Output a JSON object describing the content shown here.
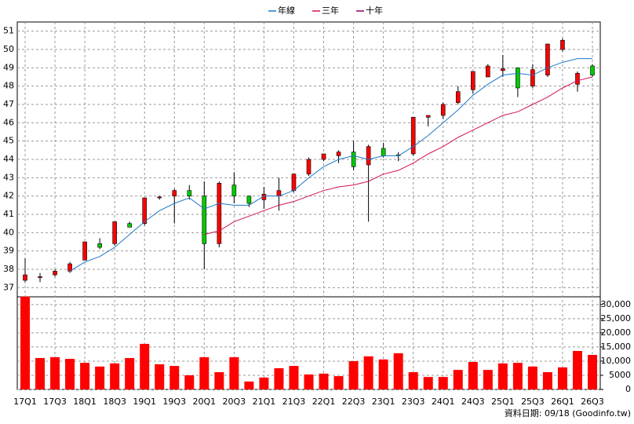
{
  "chart_data": [
    {
      "type": "candlestick",
      "categories": [
        "17Q1",
        null,
        "17Q3",
        null,
        "18Q1",
        null,
        "18Q3",
        null,
        "19Q1",
        null,
        "19Q3",
        null,
        "20Q1",
        null,
        "20Q3",
        null,
        "21Q1",
        null,
        "21Q3",
        null,
        "22Q1",
        null,
        "22Q3",
        null,
        "23Q1",
        null,
        "23Q3",
        null,
        "24Q1",
        null,
        "24Q3",
        null,
        "25Q1",
        null,
        "25Q3",
        null,
        "26Q1",
        null,
        "26Q3"
      ],
      "open": [
        37.4,
        37.55,
        37.7,
        37.9,
        38.5,
        39.4,
        39.4,
        40.5,
        40.5,
        41.9,
        42.0,
        42.3,
        42.0,
        39.4,
        42.6,
        42.0,
        41.8,
        42.0,
        42.3,
        43.2,
        44.0,
        44.2,
        44.4,
        43.7,
        44.6,
        44.25,
        44.3,
        46.3,
        46.4,
        47.1,
        47.8,
        48.5,
        48.85,
        49.0,
        48.0,
        48.6,
        50.0,
        48.1,
        49.1
      ],
      "high": [
        38.6,
        37.8,
        38.0,
        38.4,
        39.5,
        39.7,
        40.6,
        40.6,
        41.9,
        42.0,
        42.4,
        42.6,
        42.8,
        42.8,
        43.3,
        42.0,
        42.5,
        43.0,
        43.2,
        44.1,
        44.3,
        44.5,
        45.0,
        44.8,
        44.9,
        44.4,
        46.3,
        46.4,
        47.1,
        48.0,
        48.8,
        49.2,
        49.7,
        49.0,
        49.2,
        50.3,
        50.6,
        48.8,
        49.2
      ],
      "low": [
        37.3,
        37.3,
        37.6,
        37.8,
        38.5,
        39.1,
        39.3,
        40.3,
        40.4,
        41.8,
        40.5,
        41.8,
        38.0,
        39.2,
        41.6,
        41.4,
        41.3,
        41.2,
        42.2,
        43.1,
        43.9,
        43.8,
        43.4,
        40.6,
        44.1,
        43.9,
        44.2,
        45.8,
        46.2,
        47.0,
        47.6,
        48.5,
        48.5,
        47.4,
        47.9,
        48.5,
        49.9,
        47.7,
        48.5
      ],
      "close": [
        37.7,
        37.6,
        37.9,
        38.3,
        39.5,
        39.2,
        40.6,
        40.3,
        41.9,
        41.95,
        42.3,
        42.0,
        39.4,
        42.7,
        42.0,
        41.6,
        42.1,
        42.3,
        43.2,
        44.0,
        44.3,
        44.4,
        43.6,
        44.7,
        44.2,
        44.2,
        46.3,
        46.4,
        47.0,
        47.7,
        48.8,
        49.1,
        48.95,
        47.9,
        48.9,
        50.3,
        50.5,
        48.7,
        48.6
      ],
      "up_color": "#ff0000",
      "down_color": "#00cc00",
      "series": [
        {
          "name": "年線",
          "color": "#1f78c8",
          "values": [
            null,
            null,
            null,
            37.9,
            38.4,
            38.7,
            39.2,
            39.9,
            40.6,
            41.2,
            41.6,
            41.9,
            41.3,
            41.6,
            41.5,
            41.5,
            42.0,
            42.0,
            42.3,
            43.0,
            43.6,
            44.0,
            44.2,
            44.0,
            44.2,
            44.2,
            44.7,
            45.3,
            46.0,
            46.7,
            47.5,
            48.1,
            48.6,
            48.7,
            48.6,
            49.0,
            49.3,
            49.5,
            49.5
          ]
        },
        {
          "name": "三年",
          "color": "#d0105a",
          "values": [
            null,
            null,
            null,
            null,
            null,
            null,
            null,
            null,
            null,
            null,
            null,
            null,
            39.9,
            40.1,
            40.6,
            40.9,
            41.2,
            41.5,
            41.7,
            42.0,
            42.3,
            42.5,
            42.6,
            42.8,
            43.2,
            43.4,
            43.8,
            44.3,
            44.7,
            45.2,
            45.6,
            46.0,
            46.4,
            46.6,
            47.0,
            47.4,
            47.9,
            48.3,
            48.5
          ]
        },
        {
          "name": "十年",
          "color": "#900060",
          "values": [
            null,
            null,
            null,
            null,
            null,
            null,
            null,
            null,
            null,
            null,
            null,
            null,
            null,
            null,
            null,
            null,
            null,
            null,
            null,
            null,
            null,
            null,
            null,
            null,
            null,
            null,
            null,
            null,
            null,
            null,
            null,
            null,
            null,
            null,
            null,
            null,
            null,
            null,
            null
          ]
        }
      ],
      "ylim": [
        36.5,
        51.5
      ],
      "yticks": [
        37,
        38,
        39,
        40,
        41,
        42,
        43,
        44,
        45,
        46,
        47,
        48,
        49,
        50,
        51
      ],
      "grid": true,
      "legend": "top",
      "note": "資料日期: 09/18 (Goodinfo.tw)"
    },
    {
      "type": "bar",
      "color": "#ff0000",
      "values": [
        32800,
        11100,
        11400,
        10800,
        9400,
        8100,
        9200,
        11100,
        16100,
        8900,
        8300,
        5000,
        11400,
        6100,
        11400,
        2800,
        4200,
        7500,
        8300,
        5300,
        5600,
        4700,
        10000,
        11700,
        10600,
        12800,
        6100,
        4400,
        4400,
        6900,
        9700,
        6900,
        9200,
        9400,
        8100,
        6100,
        7800,
        13600,
        12200
      ],
      "ylim": [
        0,
        33000
      ],
      "yticks": [
        0,
        5000,
        {
          "value": 10000,
          "label": "10,000"
        },
        {
          "value": 15000,
          "label": "15,000"
        },
        {
          "value": 20000,
          "label": "20,000"
        },
        {
          "value": 25000,
          "label": "25,000"
        },
        {
          "value": 30000,
          "label": "30,000"
        }
      ],
      "grid": true
    }
  ]
}
